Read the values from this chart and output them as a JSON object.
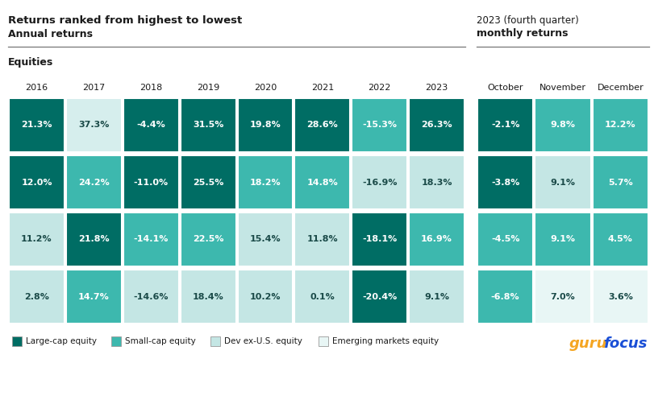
{
  "title_line1": "Returns ranked from highest to lowest",
  "title_line2": "Annual returns",
  "title_right_line1": "2023 (fourth quarter)",
  "title_right_line2": "monthly returns",
  "section_label": "Equities",
  "columns": [
    "2016",
    "2017",
    "2018",
    "2019",
    "2020",
    "2021",
    "2022",
    "2023",
    "October",
    "November",
    "December"
  ],
  "rows": [
    {
      "values": [
        "21.3%",
        "37.3%",
        "-4.4%",
        "31.5%",
        "19.8%",
        "28.6%",
        "-15.3%",
        "26.3%",
        "-2.1%",
        "9.8%",
        "12.2%"
      ],
      "colors": [
        "#006d64",
        "#d6eeed",
        "#006d64",
        "#006d64",
        "#006d64",
        "#006d64",
        "#3db8ae",
        "#006d64",
        "#006d64",
        "#3db8ae",
        "#3db8ae"
      ]
    },
    {
      "values": [
        "12.0%",
        "24.2%",
        "-11.0%",
        "25.5%",
        "18.2%",
        "14.8%",
        "-16.9%",
        "18.3%",
        "-3.8%",
        "9.1%",
        "5.7%"
      ],
      "colors": [
        "#006d64",
        "#3db8ae",
        "#006d64",
        "#006d64",
        "#3db8ae",
        "#3db8ae",
        "#c4e6e4",
        "#c4e6e4",
        "#006d64",
        "#c4e6e4",
        "#3db8ae"
      ]
    },
    {
      "values": [
        "11.2%",
        "21.8%",
        "-14.1%",
        "22.5%",
        "15.4%",
        "11.8%",
        "-18.1%",
        "16.9%",
        "-4.5%",
        "9.1%",
        "4.5%"
      ],
      "colors": [
        "#c4e6e4",
        "#006d64",
        "#3db8ae",
        "#3db8ae",
        "#c4e6e4",
        "#c4e6e4",
        "#006d64",
        "#3db8ae",
        "#3db8ae",
        "#3db8ae",
        "#3db8ae"
      ]
    },
    {
      "values": [
        "2.8%",
        "14.7%",
        "-14.6%",
        "18.4%",
        "10.2%",
        "0.1%",
        "-20.4%",
        "9.1%",
        "-6.8%",
        "7.0%",
        "3.6%"
      ],
      "colors": [
        "#c4e6e4",
        "#3db8ae",
        "#c4e6e4",
        "#c4e6e4",
        "#c4e6e4",
        "#c4e6e4",
        "#006d64",
        "#c4e6e4",
        "#3db8ae",
        "#e8f6f5",
        "#e8f6f5"
      ]
    }
  ],
  "legend": [
    {
      "label": "Large-cap equity",
      "color": "#006d64"
    },
    {
      "label": "Small-cap equity",
      "color": "#3db8ae"
    },
    {
      "label": "Dev ex-U.S. equity",
      "color": "#c4e6e4"
    },
    {
      "label": "Emerging markets equity",
      "color": "#e8f6f5"
    }
  ],
  "bg_color": "#ffffff",
  "text_dark": "#1a1a1a",
  "annual_cols": 8,
  "monthly_cols": 3,
  "guru_color": "#f5a623",
  "focus_color": "#1a4fd6"
}
